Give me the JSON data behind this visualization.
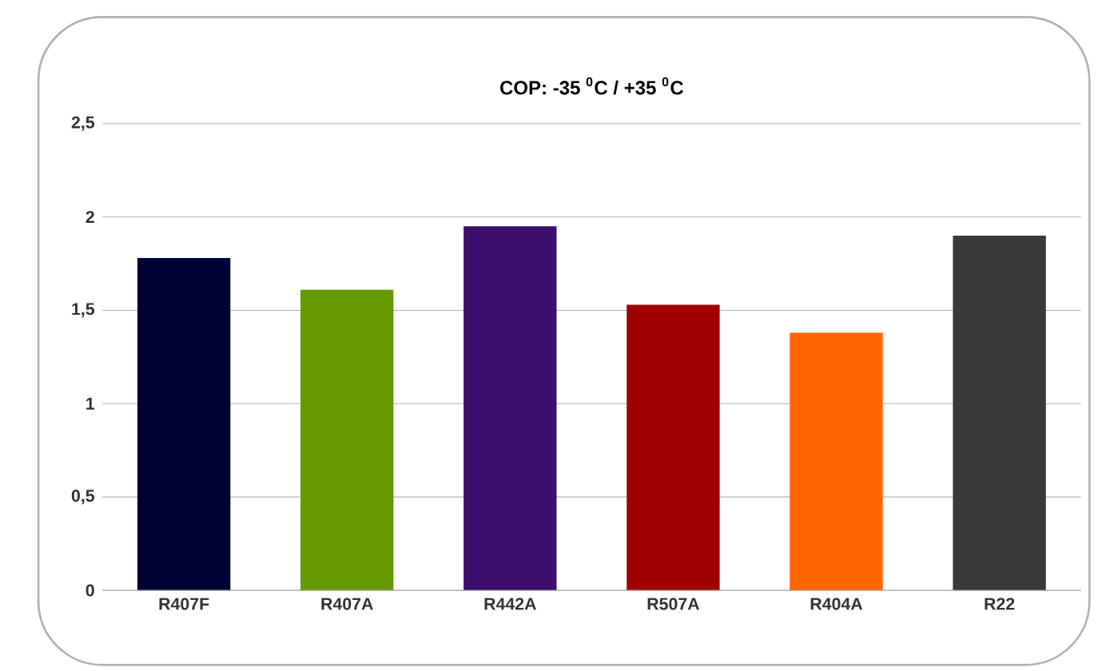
{
  "chart_data": {
    "type": "bar",
    "title": "COP: -35 $^{0}$C / +35 $^{0}$C",
    "categories": [
      "R407F",
      "R407A",
      "R442A",
      "R507A",
      "R404A",
      "R22"
    ],
    "values": [
      1.78,
      1.61,
      1.95,
      1.53,
      1.38,
      1.9
    ],
    "colors": [
      "#000033",
      "#669900",
      "#3d0e6e",
      "#a00000",
      "#ff6600",
      "#3a3a3a"
    ],
    "ylim": [
      0,
      2.5
    ],
    "yticks": [
      0,
      {
        "value": 0.5,
        "label": "0,5"
      },
      1,
      {
        "value": 1.5,
        "label": "1,5"
      },
      2,
      {
        "value": 2.5,
        "label": "2,5"
      }
    ],
    "grid": "y"
  }
}
